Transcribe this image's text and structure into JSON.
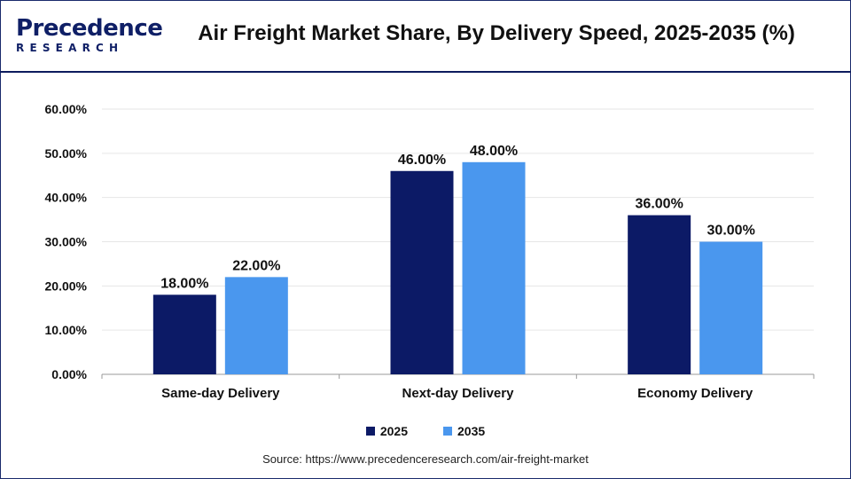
{
  "header": {
    "logo_top": "Precedence",
    "logo_bottom": "RESEARCH",
    "title": "Air Freight Market Share, By Delivery Speed, 2025-2035 (%)"
  },
  "source": "Source: https://www.precedenceresearch.com/air-freight-market",
  "colors": {
    "series_2025": "#0c1a66",
    "series_2035": "#4a97ee",
    "grid": "#e6e6e6",
    "axis": "#999999"
  },
  "chart_data": {
    "type": "bar",
    "title": "Air Freight Market Share, By Delivery Speed, 2025-2035 (%)",
    "categories": [
      "Same-day Delivery",
      "Next-day Delivery",
      "Economy Delivery"
    ],
    "series": [
      {
        "name": "2025",
        "values": [
          18.0,
          46.0,
          36.0
        ],
        "labels": [
          "18.00%",
          "46.00%",
          "36.00%"
        ]
      },
      {
        "name": "2035",
        "values": [
          22.0,
          48.0,
          30.0
        ],
        "labels": [
          "22.00%",
          "48.00%",
          "30.00%"
        ]
      }
    ],
    "yticks": [
      "0.00%",
      "10.00%",
      "20.00%",
      "30.00%",
      "40.00%",
      "50.00%",
      "60.00%"
    ],
    "ylim": [
      0,
      60
    ],
    "xlabel": "",
    "ylabel": "",
    "grid": true,
    "legend": "bottom"
  }
}
